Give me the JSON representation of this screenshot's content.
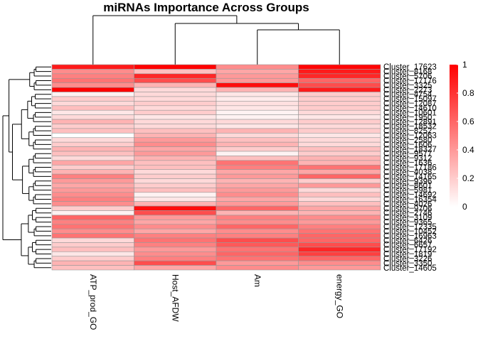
{
  "chart_data": {
    "type": "heatmap",
    "title": "miRNAs Importance Across Groups",
    "columns": [
      "ATP_prod_GO",
      "Host_AFDW",
      "Am",
      "energy_GO"
    ],
    "rows": [
      "Cluster_17623",
      "Cluster_8168",
      "Cluster_5706",
      "Cluster_17176",
      "Cluster_3325",
      "Cluster_2273",
      "Cluster_4754",
      "Cluster_15097",
      "Cluster_12087",
      "Cluster_14610",
      "Cluster_10601",
      "Cluster_1950",
      "Cluster_12891",
      "Cluster_18532",
      "Cluster_8252",
      "Cluster_12063",
      "Cluster_2580",
      "Cluster_1606",
      "Cluster_18327",
      "Cluster_9577",
      "Cluster_9312",
      "Cluster_1636",
      "Cluster_17186",
      "Cluster_4038",
      "Cluster_14165",
      "Cluster_9396",
      "Cluster_8601",
      "Cluster_5981",
      "Cluster_14692",
      "Cluster_16354",
      "Cluster_4026",
      "Cluster_9706",
      "Cluster_2746",
      "Cluster_3109",
      "Cluster_9365",
      "Cluster_12335",
      "Cluster_10452",
      "Cluster_16963",
      "Cluster_6426",
      "Cluster_6657",
      "Cluster_17192",
      "Cluster_1819",
      "Cluster_3226",
      "Cluster_3350",
      "Cluster_14605"
    ],
    "values": [
      [
        0.9,
        1.0,
        0.45,
        0.98
      ],
      [
        0.45,
        0.25,
        0.35,
        0.9
      ],
      [
        0.5,
        0.85,
        0.4,
        0.85
      ],
      [
        0.55,
        0.7,
        0.4,
        0.6
      ],
      [
        0.45,
        0.3,
        0.95,
        0.7
      ],
      [
        1.0,
        0.15,
        0.3,
        0.9
      ],
      [
        0.05,
        0.15,
        0.1,
        0.2
      ],
      [
        0.2,
        0.15,
        0.08,
        0.2
      ],
      [
        0.15,
        0.2,
        0.12,
        0.2
      ],
      [
        0.25,
        0.15,
        0.1,
        0.2
      ],
      [
        0.1,
        0.2,
        0.05,
        0.15
      ],
      [
        0.15,
        0.1,
        0.05,
        0.1
      ],
      [
        0.3,
        0.15,
        0.15,
        0.2
      ],
      [
        0.2,
        0.15,
        0.1,
        0.15
      ],
      [
        0.25,
        0.25,
        0.3,
        0.2
      ],
      [
        0.0,
        0.3,
        0.15,
        0.1
      ],
      [
        0.15,
        0.4,
        0.25,
        0.15
      ],
      [
        0.2,
        0.45,
        0.3,
        0.15
      ],
      [
        0.3,
        0.35,
        0.2,
        0.25
      ],
      [
        0.25,
        0.4,
        0.05,
        0.2
      ],
      [
        0.15,
        0.3,
        0.25,
        0.3
      ],
      [
        0.35,
        0.25,
        0.55,
        0.3
      ],
      [
        0.2,
        0.25,
        0.5,
        0.55
      ],
      [
        0.3,
        0.15,
        0.35,
        0.35
      ],
      [
        0.5,
        0.2,
        0.4,
        0.6
      ],
      [
        0.4,
        0.15,
        0.3,
        0.2
      ],
      [
        0.35,
        0.2,
        0.35,
        0.4
      ],
      [
        0.4,
        0.25,
        0.4,
        0.15
      ],
      [
        0.45,
        0.05,
        0.45,
        0.25
      ],
      [
        0.5,
        0.1,
        0.35,
        0.15
      ],
      [
        0.45,
        0.3,
        0.4,
        0.25
      ],
      [
        0.2,
        0.95,
        0.6,
        0.35
      ],
      [
        0.05,
        0.7,
        0.3,
        0.3
      ],
      [
        0.6,
        0.4,
        0.5,
        0.45
      ],
      [
        0.5,
        0.35,
        0.45,
        0.4
      ],
      [
        0.55,
        0.45,
        0.6,
        0.5
      ],
      [
        0.45,
        0.35,
        0.45,
        0.55
      ],
      [
        0.55,
        0.5,
        0.5,
        0.6
      ],
      [
        0.15,
        0.55,
        0.7,
        0.6
      ],
      [
        0.2,
        0.5,
        0.65,
        0.7
      ],
      [
        0.25,
        0.4,
        0.55,
        0.85
      ],
      [
        0.1,
        0.45,
        0.6,
        0.75
      ],
      [
        0.2,
        0.5,
        0.55,
        0.6
      ],
      [
        0.3,
        0.7,
        0.4,
        0.45
      ],
      [
        0.25,
        0.35,
        0.45,
        0.4
      ]
    ],
    "color_scale": {
      "low": "#ffffff",
      "high": "#ff0000",
      "min": 0,
      "max": 1
    },
    "legend": {
      "ticks": [
        0,
        0.2,
        0.4,
        0.6,
        0.8,
        1
      ],
      "placement": "right"
    },
    "cell_border_color": "#999999",
    "row_dendrogram": true,
    "column_dendrogram": true
  }
}
